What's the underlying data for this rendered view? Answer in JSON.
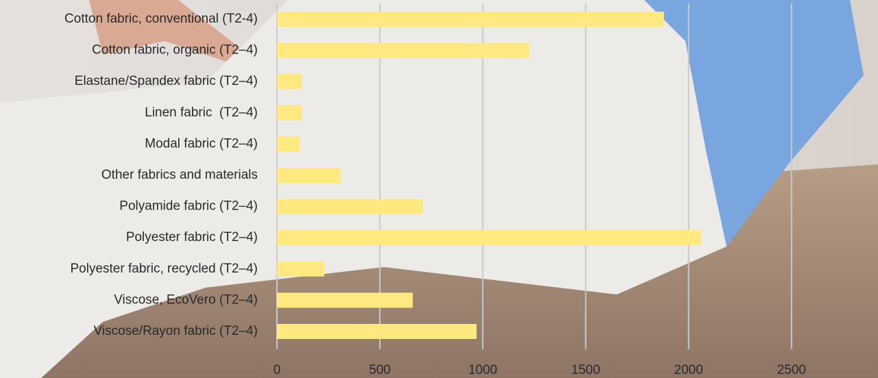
{
  "chart_data": {
    "type": "bar",
    "orientation": "horizontal",
    "categories": [
      "Cotton fabric, conventional (T2-4)",
      "Cotton fabric, organic (T2–4)",
      "Elastane/Spandex fabric (T2–4)",
      "Linen fabric  (T2–4)",
      "Modal fabric (T2–4)",
      "Other fabrics and materials",
      "Polyamide fabric (T2–4)",
      "Polyester fabric (T2–4)",
      "Polyester fabric, recycled (T2–4)",
      "Viscose, EcoVero (T2–4)",
      "Viscose/Rayon fabric (T2–4)"
    ],
    "values": [
      1880,
      1225,
      120,
      120,
      110,
      310,
      710,
      2060,
      230,
      660,
      970
    ],
    "color": "#fde980",
    "xlim": [
      0,
      2900
    ],
    "xticks": [
      0,
      500,
      1000,
      1500,
      2000,
      2500
    ],
    "grid": true
  }
}
